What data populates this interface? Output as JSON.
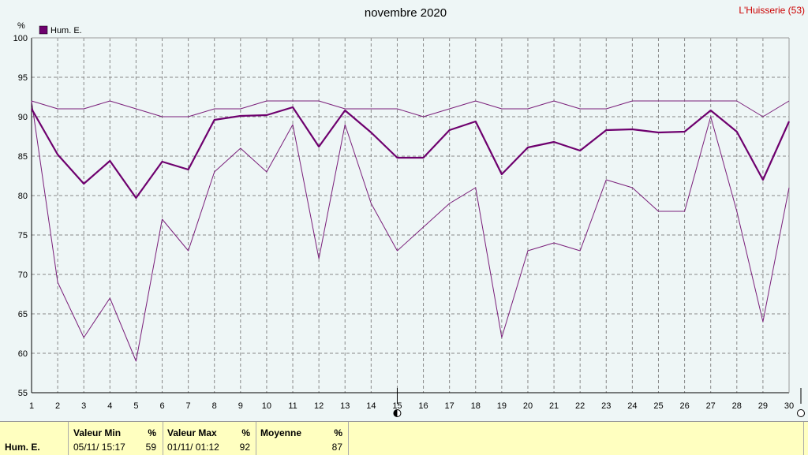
{
  "chart_data": {
    "type": "line",
    "title": "novembre 2020",
    "station": "L'Huisserie (53)",
    "ylabel": "%",
    "ylim": [
      55,
      100
    ],
    "yticks": [
      55,
      60,
      65,
      70,
      75,
      80,
      85,
      90,
      95,
      100
    ],
    "x": [
      1,
      2,
      3,
      4,
      5,
      6,
      7,
      8,
      9,
      10,
      11,
      12,
      13,
      14,
      15,
      16,
      17,
      18,
      19,
      20,
      21,
      22,
      23,
      24,
      25,
      26,
      27,
      28,
      29,
      30
    ],
    "xlim": [
      1,
      30
    ],
    "grid": true,
    "legend": "top-left",
    "series": [
      {
        "name": "Hum. E.",
        "color": "#6e006e",
        "values": [
          91,
          85.2,
          81.5,
          84.4,
          79.7,
          84.3,
          83.3,
          89.6,
          90.1,
          90.2,
          91.2,
          86.2,
          90.8,
          88,
          84.8,
          84.8,
          88.3,
          89.4,
          82.7,
          86.1,
          86.8,
          85.7,
          88.3,
          88.4,
          88,
          88.1,
          90.8,
          88.1,
          82,
          89.4
        ]
      },
      {
        "role": "max",
        "color": "#7a1f7a",
        "values": [
          92,
          91,
          91,
          92,
          91,
          90,
          90,
          91,
          91,
          92,
          92,
          92,
          91,
          91,
          91,
          90,
          91,
          92,
          91,
          91,
          92,
          91,
          91,
          92,
          92,
          92,
          92,
          92,
          90,
          92
        ]
      },
      {
        "role": "min",
        "color": "#7a1f7a",
        "values": [
          92,
          69,
          62,
          67,
          59,
          77,
          73,
          83,
          86,
          83,
          89,
          72,
          89,
          79,
          73,
          76,
          79,
          81,
          62,
          73,
          74,
          73,
          82,
          81,
          78,
          78,
          90,
          78,
          64,
          81
        ]
      }
    ],
    "markers": {
      "x15": "full-moon-icon",
      "x30": "new-moon-icon"
    }
  },
  "stats": {
    "series_label": "Hum. E.",
    "min": {
      "label": "Valeur Min",
      "unit": "%",
      "date": "05/11/  15:17",
      "value": "59"
    },
    "max": {
      "label": "Valeur Max",
      "unit": "%",
      "date": "01/11/  01:12",
      "value": "92"
    },
    "avg": {
      "label": "Moyenne",
      "unit": "%",
      "value": "87"
    }
  }
}
